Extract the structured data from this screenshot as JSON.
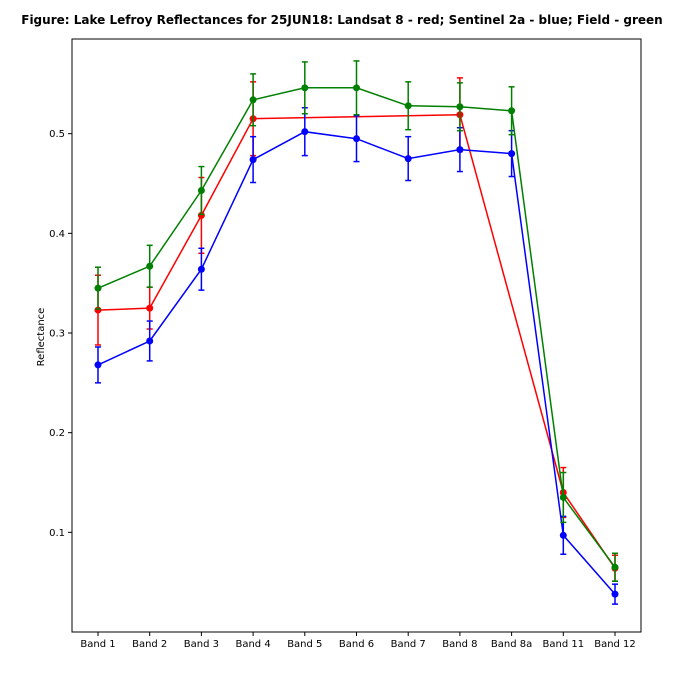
{
  "chart_data": {
    "type": "line",
    "title": "Figure: Lake Lefroy Reflectances for 25JUN18: Landsat 8 - red; Sentinel 2a - blue; Field - green",
    "xlabel": "",
    "ylabel": "Reflectance",
    "categories": [
      "Band 1",
      "Band 2",
      "Band 3",
      "Band 4",
      "Band 5",
      "Band 6",
      "Band 7",
      "Band 8",
      "Band 8a",
      "Band 11",
      "Band 12"
    ],
    "ylim": [
      0.0,
      0.595
    ],
    "yticks": [
      0.1,
      0.2,
      0.3,
      0.4,
      0.5
    ],
    "ytick_labels": [
      "0.1",
      "0.2",
      "0.3",
      "0.4",
      "0.5"
    ],
    "grid": false,
    "legend": "none",
    "series": [
      {
        "color": "#ff0000",
        "values": [
          0.323,
          0.325,
          0.418,
          0.515,
          null,
          null,
          null,
          0.519,
          null,
          0.14,
          0.064
        ],
        "errors": [
          0.035,
          0.021,
          0.038,
          0.037,
          null,
          null,
          null,
          0.037,
          null,
          0.025,
          0.013
        ]
      },
      {
        "color": "#0000ff",
        "values": [
          0.268,
          0.292,
          0.364,
          0.474,
          0.502,
          0.495,
          0.475,
          0.484,
          0.48,
          0.097,
          0.038
        ],
        "errors": [
          0.018,
          0.02,
          0.021,
          0.023,
          0.024,
          0.023,
          0.022,
          0.022,
          0.023,
          0.019,
          0.01
        ]
      },
      {
        "color": "#008000",
        "values": [
          0.345,
          0.367,
          0.443,
          0.534,
          0.546,
          0.546,
          0.528,
          0.527,
          0.523,
          0.135,
          0.065
        ],
        "errors": [
          0.021,
          0.021,
          0.024,
          0.026,
          0.026,
          0.027,
          0.024,
          0.024,
          0.024,
          0.025,
          0.014
        ]
      }
    ]
  }
}
